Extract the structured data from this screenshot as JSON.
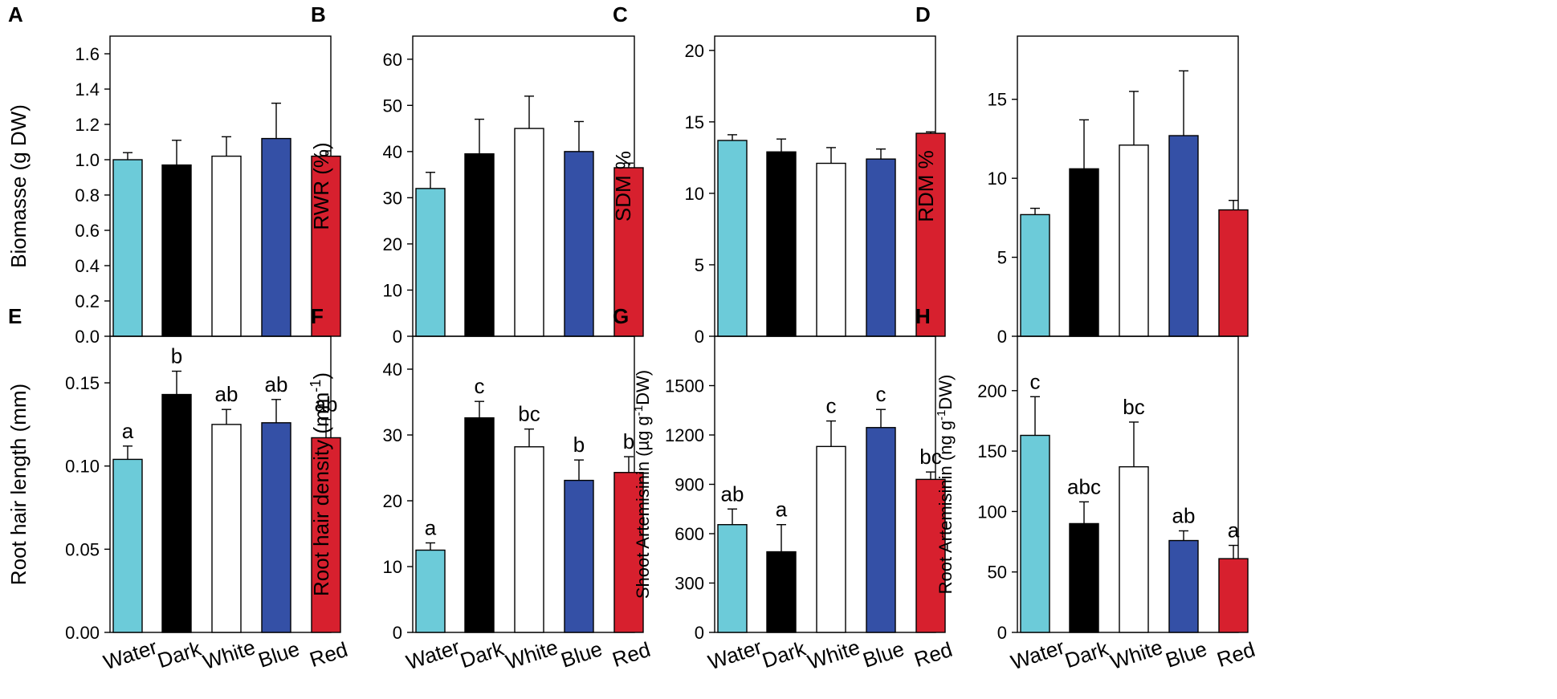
{
  "colors": {
    "water": "#6ccbd9",
    "dark": "#000000",
    "white": "#ffffff",
    "blue": "#3450a6",
    "red": "#d7202e",
    "axis": "#000000"
  },
  "chart_data": [
    {
      "panel": "A",
      "type": "bar",
      "ylabel": "Biomasse (g DW)",
      "categories": [
        "Water",
        "Dark",
        "White",
        "Blue",
        "Red"
      ],
      "values": [
        1.0,
        0.97,
        1.02,
        1.12,
        1.02
      ],
      "errors": [
        0.04,
        0.14,
        0.11,
        0.2,
        0.03
      ],
      "letters": [],
      "ylim": [
        0,
        1.7
      ],
      "yticks": [
        0.0,
        0.2,
        0.4,
        0.6,
        0.8,
        1.0,
        1.2,
        1.4,
        1.6
      ],
      "tick_labels": [
        "0.0",
        "0.2",
        "0.4",
        "0.6",
        "0.8",
        "1.0",
        "1.2",
        "1.4",
        "1.6"
      ]
    },
    {
      "panel": "B",
      "type": "bar",
      "ylabel": "RWR (%)",
      "categories": [
        "Water",
        "Dark",
        "White",
        "Blue",
        "Red"
      ],
      "values": [
        32,
        39.5,
        45,
        40,
        36.5
      ],
      "errors": [
        3.5,
        7.5,
        7,
        6.5,
        1
      ],
      "letters": [],
      "ylim": [
        0,
        65
      ],
      "yticks": [
        0,
        10,
        20,
        30,
        40,
        50,
        60
      ],
      "tick_labels": [
        "0",
        "10",
        "20",
        "30",
        "40",
        "50",
        "60"
      ]
    },
    {
      "panel": "C",
      "type": "bar",
      "ylabel": "SDM  %",
      "categories": [
        "Water",
        "Dark",
        "White",
        "Blue",
        "Red"
      ],
      "values": [
        13.7,
        12.9,
        12.1,
        12.4,
        14.2
      ],
      "errors": [
        0.4,
        0.9,
        1.1,
        0.7,
        0.1
      ],
      "letters": [],
      "ylim": [
        0,
        21
      ],
      "yticks": [
        0,
        5,
        10,
        15,
        20
      ],
      "tick_labels": [
        "0",
        "5",
        "10",
        "15",
        "20"
      ]
    },
    {
      "panel": "D",
      "type": "bar",
      "ylabel": "RDM %",
      "categories": [
        "Water",
        "Dark",
        "White",
        "Blue",
        "Red"
      ],
      "values": [
        7.7,
        10.6,
        12.1,
        12.7,
        8.0
      ],
      "errors": [
        0.4,
        3.1,
        3.4,
        4.1,
        0.6
      ],
      "letters": [],
      "ylim": [
        0,
        19
      ],
      "yticks": [
        0,
        5,
        10,
        15
      ],
      "tick_labels": [
        "0",
        "5",
        "10",
        "15"
      ]
    },
    {
      "panel": "E",
      "type": "bar",
      "ylabel": "Root hair length (mm)",
      "categories": [
        "Water",
        "Dark",
        "White",
        "Blue",
        "Red"
      ],
      "values": [
        0.104,
        0.143,
        0.125,
        0.126,
        0.117
      ],
      "errors": [
        0.008,
        0.014,
        0.009,
        0.014,
        0.011
      ],
      "letters": [
        "a",
        "b",
        "ab",
        "ab",
        "ab"
      ],
      "ylim": [
        0,
        0.178
      ],
      "yticks": [
        0,
        0.05,
        0.1,
        0.15
      ],
      "tick_labels": [
        "0.00",
        "0.05",
        "0.10",
        "0.15"
      ]
    },
    {
      "panel": "F",
      "type": "bar",
      "ylabel": "Root hair density (mm-1)",
      "categories": [
        "Water",
        "Dark",
        "White",
        "Blue",
        "Red"
      ],
      "values": [
        12.5,
        32.6,
        28.2,
        23.1,
        24.3
      ],
      "errors": [
        1.1,
        2.5,
        2.7,
        3.1,
        2.4
      ],
      "letters": [
        "a",
        "c",
        "bc",
        "b",
        "b"
      ],
      "ylim": [
        0,
        45
      ],
      "yticks": [
        0,
        10,
        20,
        30,
        40
      ],
      "tick_labels": [
        "0",
        "10",
        "20",
        "30",
        "40"
      ]
    },
    {
      "panel": "G",
      "type": "bar",
      "ylabel": "Shoot Artemisinin (µg g-1DW)",
      "categories": [
        "Water",
        "Dark",
        "White",
        "Blue",
        "Red"
      ],
      "values": [
        655,
        490,
        1130,
        1245,
        930
      ],
      "errors": [
        95,
        165,
        155,
        110,
        45
      ],
      "letters": [
        "ab",
        "a",
        "c",
        "c",
        "bc"
      ],
      "ylim": [
        0,
        1800
      ],
      "yticks": [
        0,
        300,
        600,
        900,
        1200,
        1500
      ],
      "tick_labels": [
        "0",
        "300",
        "600",
        "900",
        "1200",
        "1500"
      ]
    },
    {
      "panel": "H",
      "type": "bar",
      "ylabel": "Root Artemisinin (ng g-1DW)",
      "categories": [
        "Water",
        "Dark",
        "White",
        "Blue",
        "Red"
      ],
      "values": [
        163,
        90,
        137,
        76,
        61
      ],
      "errors": [
        32,
        18,
        37,
        8,
        11
      ],
      "letters": [
        "c",
        "abc",
        "bc",
        "ab",
        "a"
      ],
      "ylim": [
        0,
        245
      ],
      "yticks": [
        0,
        50,
        100,
        150,
        200
      ],
      "tick_labels": [
        "0",
        "50",
        "100",
        "150",
        "200"
      ]
    }
  ]
}
